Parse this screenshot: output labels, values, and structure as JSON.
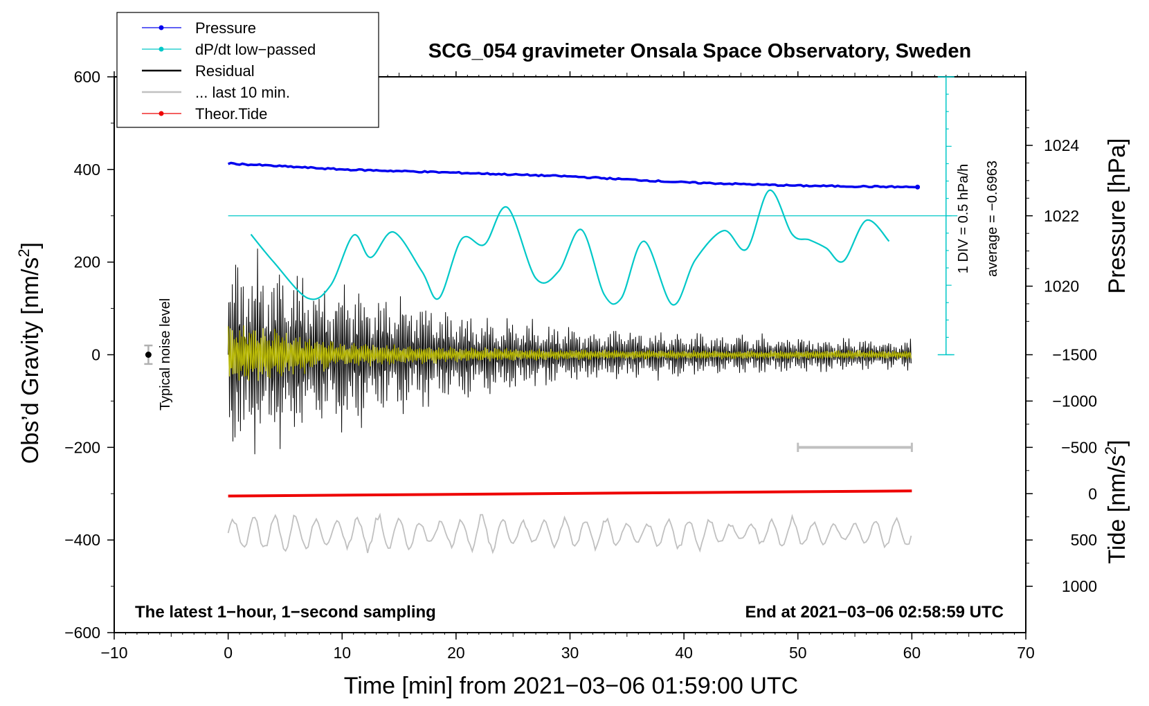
{
  "chart_data": {
    "type": "line",
    "title": "SCG_054 gravimeter Onsala Space Observatory, Sweden",
    "xlabel": "Time [min] from 2021−03−06 01:59:00 UTC",
    "ylabel": "Obs’d Gravity [nm/s",
    "ylabel_sup": "2",
    "ylabel_close": "]",
    "pressure_label": "Pressure [hPa]",
    "tide_label": "Tide [nm/s",
    "tide_label_sup": "2",
    "tide_label_close": "]",
    "xlim": [
      -10,
      70
    ],
    "ylim": [
      -600,
      600
    ],
    "x_ticks": [
      -10,
      0,
      10,
      20,
      30,
      40,
      50,
      60,
      70
    ],
    "x_tick_labels": [
      "−10",
      "0",
      "10",
      "20",
      "30",
      "40",
      "50",
      "60",
      "70"
    ],
    "y_ticks": [
      600,
      400,
      200,
      0,
      -200,
      -400,
      -600
    ],
    "y_tick_labels": [
      "600",
      "400",
      "200",
      "0",
      "−200",
      "−400",
      "−600"
    ],
    "pressure_ticks": [
      1024,
      1022,
      1020
    ],
    "pressure_tick_labels": [
      "1024",
      "1022",
      "1020"
    ],
    "tide_ticks": [
      1000,
      500,
      0,
      -500,
      -1000,
      -1500
    ],
    "tide_tick_labels": [
      "1000",
      "500",
      "0",
      "−500",
      "−1000",
      "−1500"
    ],
    "bottom_left_note": "The latest 1−hour, 1−second sampling",
    "bottom_right_note": "End at 2021−03−06 02:58:59 UTC",
    "noise_label": "Typical noise level",
    "noise_level": 20,
    "dpdt_scale_label": "1 DIV = 0.5 hPa/h",
    "dpdt_average_label": "average = −0.6963",
    "legend": [
      {
        "label": "Pressure",
        "color": "#0000ee",
        "marker": "dot"
      },
      {
        "label": "dP/dt low−passed",
        "color": "#00c8c8",
        "marker": "dot"
      },
      {
        "label": "Residual",
        "color": "#000000",
        "marker": "line"
      },
      {
        "label": "... last 10 min.",
        "color": "#c0c0c0",
        "marker": "line"
      },
      {
        "label": "Theor.Tide",
        "color": "#ee0000",
        "marker": "dot"
      }
    ],
    "series": [
      {
        "name": "Pressure",
        "color": "#0000ee",
        "axis": "gravity",
        "x": [
          0,
          10,
          20,
          30,
          40,
          50,
          60
        ],
        "values": [
          413,
          400,
          393,
          385,
          372,
          365,
          362
        ]
      },
      {
        "name": "dP/dt low−passed",
        "color": "#00c8c8",
        "axis": "gravity",
        "x": [
          2,
          4,
          7,
          9,
          11,
          12.5,
          14.5,
          17,
          18.5,
          20.5,
          22.5,
          24.5,
          27,
          29,
          31,
          33,
          34.5,
          36.5,
          39,
          41,
          43.5,
          45.5,
          47.5,
          49.5,
          51,
          52.5,
          54,
          56,
          58
        ],
        "values": [
          260,
          200,
          122,
          150,
          258,
          210,
          265,
          180,
          122,
          250,
          238,
          318,
          165,
          180,
          270,
          130,
          122,
          245,
          108,
          205,
          268,
          228,
          355,
          260,
          248,
          230,
          202,
          290,
          245
        ]
      },
      {
        "name": "Residual",
        "color": "#000000",
        "axis": "gravity",
        "x": [
          0,
          10,
          20,
          30,
          40,
          50,
          60
        ],
        "values": [
          0,
          0,
          0,
          0,
          0,
          0,
          0
        ],
        "envelope": [
          [
            0,
            260
          ],
          [
            10,
            175
          ],
          [
            20,
            110
          ],
          [
            30,
            70
          ],
          [
            40,
            55
          ],
          [
            50,
            45
          ],
          [
            60,
            35
          ]
        ]
      },
      {
        "name": "Residual filtered",
        "color": "#c8c800",
        "axis": "gravity",
        "x": [
          0,
          10,
          20,
          30,
          40,
          50,
          60
        ],
        "values": [
          0,
          0,
          0,
          0,
          0,
          0,
          0
        ],
        "envelope": [
          [
            0,
            75
          ],
          [
            10,
            30
          ],
          [
            20,
            18
          ],
          [
            30,
            12
          ],
          [
            40,
            10
          ],
          [
            50,
            10
          ],
          [
            60,
            10
          ]
        ]
      },
      {
        "name": "... last 10 min.",
        "color": "#c0c0c0",
        "axis": "gravity",
        "x": [
          0,
          60
        ],
        "values": [
          -385,
          -385
        ],
        "range": [
          -320,
          -425
        ]
      },
      {
        "name": "Theor.Tide",
        "color": "#ee0000",
        "axis": "gravity",
        "x": [
          0,
          60
        ],
        "values": [
          -305,
          -294
        ]
      }
    ],
    "last_10_min_bar": [
      50,
      60
    ]
  }
}
